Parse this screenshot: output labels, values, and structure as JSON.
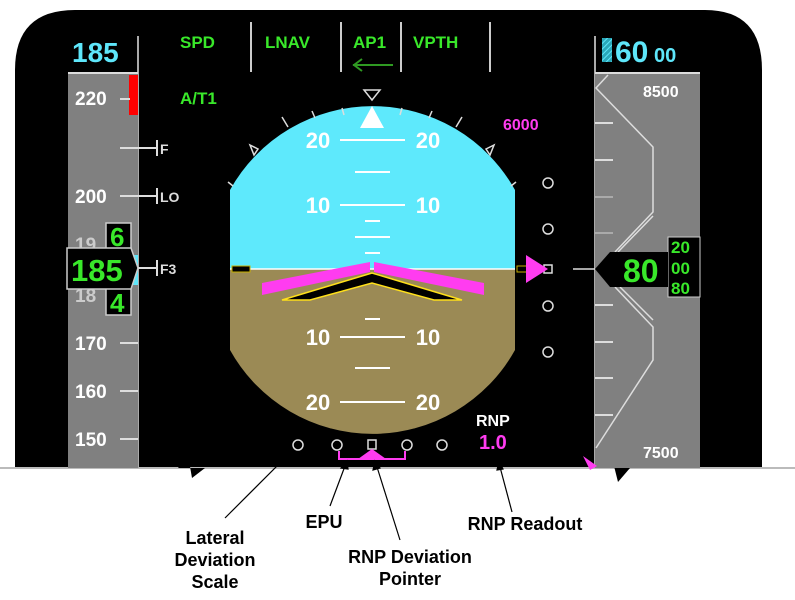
{
  "fma": {
    "speed_mode": "SPD",
    "roll_mode": "LNAV",
    "autopilot": "AP1",
    "pitch_mode": "VPTH",
    "autothrottle": "A/T1"
  },
  "speed_tape": {
    "selected_speed": "185",
    "ticks": [
      "220",
      "200",
      "170",
      "160",
      "150"
    ],
    "partial_ticks": [
      "19",
      "18"
    ],
    "bugs": [
      "F",
      "LO",
      "F3"
    ],
    "current_speed": "185",
    "current_digit_above": "6",
    "current_digit_below": "4"
  },
  "altitude_tape": {
    "selected_altitude_major": "60",
    "selected_altitude_minor": "00",
    "top_label": "8500",
    "bottom_label": "7500",
    "current_altitude_major": "80",
    "rolling_digits": [
      "20",
      "00",
      "80"
    ]
  },
  "attitude": {
    "pitch_labels": [
      "20",
      "10",
      "10",
      "20"
    ],
    "target_altitude": "6000"
  },
  "rnp": {
    "label": "RNP",
    "value": "1.0"
  },
  "callouts": {
    "lateral_scale": [
      "Lateral",
      "Deviation",
      "Scale"
    ],
    "epu": "EPU",
    "rnp_pointer": [
      "RNP Deviation",
      "Pointer"
    ],
    "rnp_readout": "RNP Readout"
  },
  "colors": {
    "sky": "#5ee9fc",
    "ground": "#9b8a55",
    "tape": "#808080",
    "fma_green": "#39e82a",
    "magenta": "#ff3cf0",
    "cyan": "#5ee6fa"
  }
}
